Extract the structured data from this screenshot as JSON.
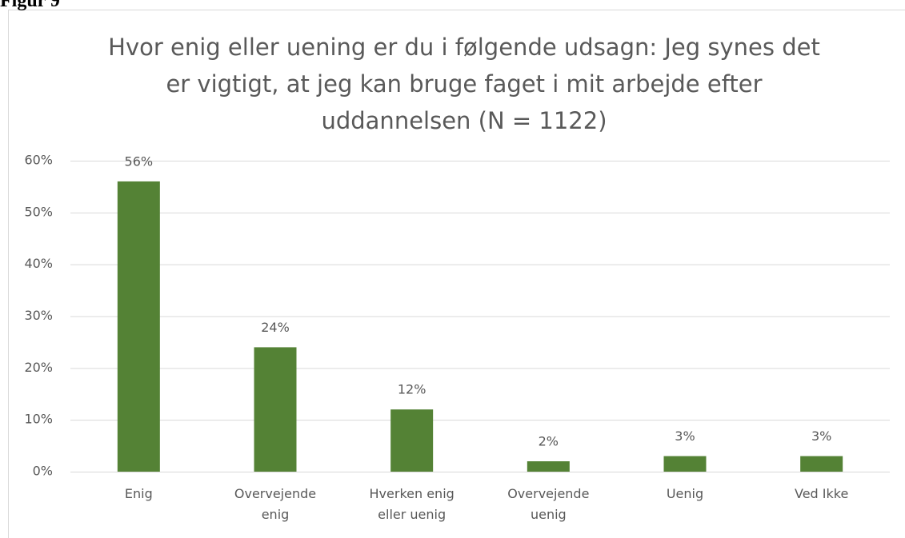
{
  "label": "Figur 9",
  "chart_data": {
    "type": "bar",
    "title": "Hvor enig eller uening er du i følgende udsagn: Jeg synes det er vigtigt, at jeg kan bruge faget i mit arbejde efter uddannelsen (N = 1122)",
    "categories": [
      "Enig",
      "Overvejende enig",
      "Hverken enig eller uenig",
      "Overvejende uenig",
      "Uenig",
      "Ved Ikke"
    ],
    "values": [
      56,
      24,
      12,
      2,
      3,
      3
    ],
    "value_labels": [
      "56%",
      "24%",
      "12%",
      "2%",
      "3%",
      "3%"
    ],
    "color": "#548235",
    "ylim": [
      0,
      60
    ],
    "yticks": [
      {
        "value": 0,
        "label": "0%"
      },
      {
        "value": 10,
        "label": "10%"
      },
      {
        "value": 20,
        "label": "20%"
      },
      {
        "value": 30,
        "label": "30%"
      },
      {
        "value": 40,
        "label": "40%"
      },
      {
        "value": 50,
        "label": "50%"
      },
      {
        "value": 60,
        "label": "60%"
      }
    ],
    "grid": true
  }
}
